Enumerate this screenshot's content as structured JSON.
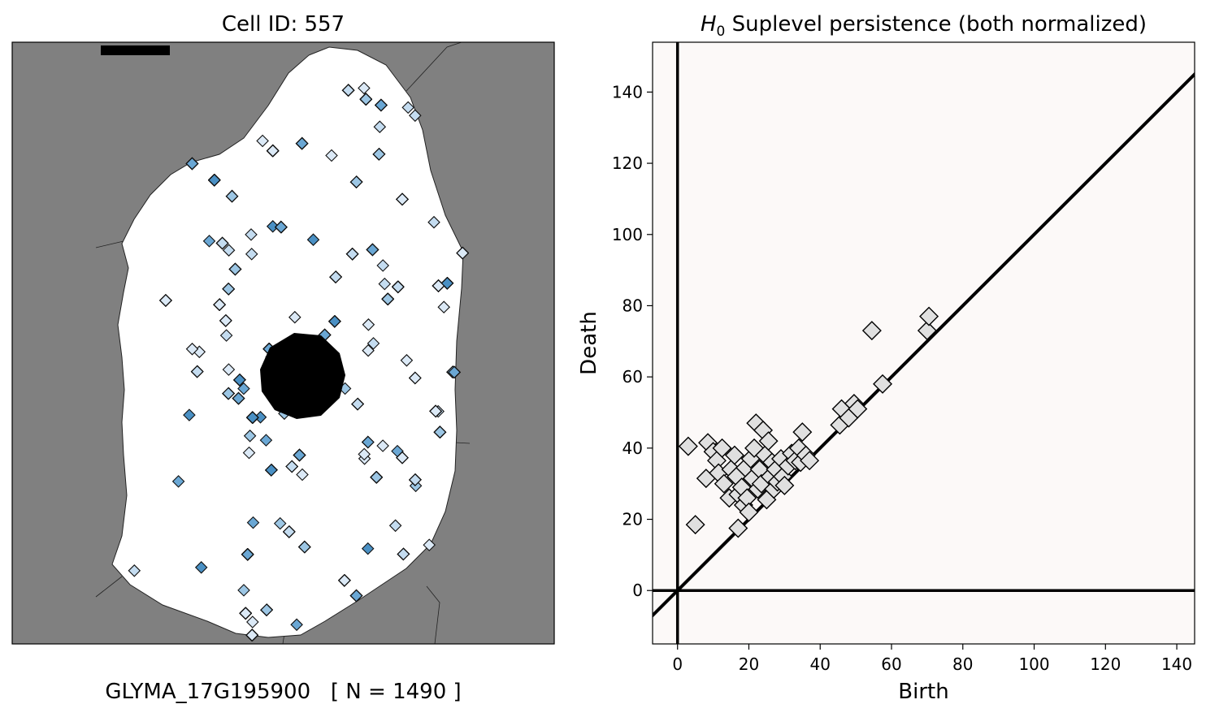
{
  "left_panel": {
    "title": "Cell ID: 557",
    "caption": "GLYMA_17G195900   [ N = 1490 ]",
    "background_color": "#808080",
    "cell_color": "#ffffff",
    "nucleus_color": "#000000",
    "marker_colors": [
      "#4a90c4",
      "#6aa7d4",
      "#9cc6e4",
      "#c4dcf0",
      "#dbe9f6"
    ]
  },
  "chart_data": {
    "type": "scatter",
    "title_symbol": "H",
    "title_subscript": "0",
    "title_rest": " Suplevel persistence (both normalized)",
    "xlabel": "Birth",
    "ylabel": "Death",
    "xlim": [
      -7,
      145
    ],
    "ylim": [
      -15,
      154
    ],
    "xticks": [
      0,
      20,
      40,
      60,
      80,
      100,
      120,
      140
    ],
    "yticks": [
      0,
      20,
      40,
      60,
      80,
      100,
      120,
      140
    ],
    "background_color": "#fcf9f8",
    "marker_color": "#e0e0e0",
    "diagonal": true,
    "axis_lines_at_zero": true,
    "points": [
      [
        3,
        40.5
      ],
      [
        5,
        18.5
      ],
      [
        8,
        31.5
      ],
      [
        8.5,
        41.5
      ],
      [
        10,
        39
      ],
      [
        11,
        36.5
      ],
      [
        11.5,
        33
      ],
      [
        12.5,
        40
      ],
      [
        13,
        30
      ],
      [
        14.5,
        26
      ],
      [
        15,
        34
      ],
      [
        16,
        38
      ],
      [
        16.5,
        32
      ],
      [
        17,
        27
      ],
      [
        17,
        17.5
      ],
      [
        18,
        29
      ],
      [
        18.5,
        24
      ],
      [
        19,
        34.5
      ],
      [
        19.5,
        26
      ],
      [
        20,
        22
      ],
      [
        20.5,
        37
      ],
      [
        21,
        31.5
      ],
      [
        21.5,
        40
      ],
      [
        22,
        47
      ],
      [
        22.5,
        28.5
      ],
      [
        23,
        34
      ],
      [
        23.5,
        30
      ],
      [
        24,
        45
      ],
      [
        24.5,
        38
      ],
      [
        25,
        25.5
      ],
      [
        25.5,
        42
      ],
      [
        26,
        32
      ],
      [
        26.5,
        36
      ],
      [
        27,
        28.5
      ],
      [
        27.5,
        34
      ],
      [
        28,
        30.5
      ],
      [
        29,
        37
      ],
      [
        29.5,
        32
      ],
      [
        30,
        29.5
      ],
      [
        31,
        35
      ],
      [
        32,
        38.5
      ],
      [
        33,
        36.5
      ],
      [
        34,
        40
      ],
      [
        34.5,
        36
      ],
      [
        35,
        44.5
      ],
      [
        36,
        38
      ],
      [
        37,
        36.5
      ],
      [
        45.5,
        46.5
      ],
      [
        46,
        51
      ],
      [
        48,
        48.5
      ],
      [
        49.5,
        52.5
      ],
      [
        50.5,
        51
      ],
      [
        54.5,
        73
      ],
      [
        57.5,
        58
      ],
      [
        70,
        73
      ],
      [
        70.5,
        77
      ]
    ]
  }
}
